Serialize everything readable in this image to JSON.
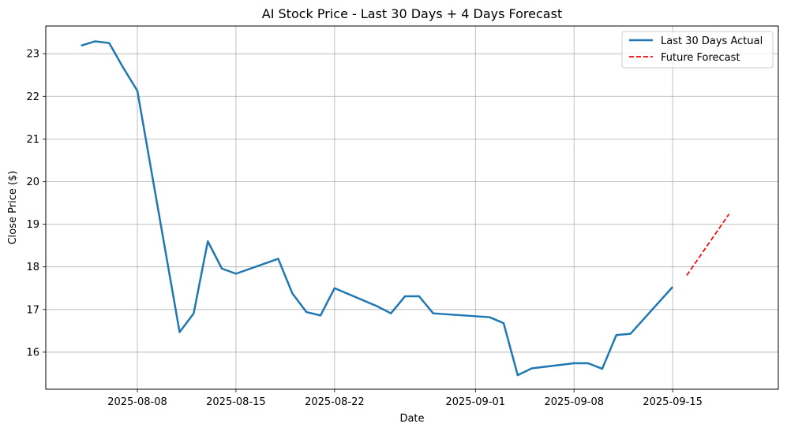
{
  "chart_data": {
    "type": "line",
    "title": "AI Stock Price - Last 30 Days + 4 Days Forecast",
    "xlabel": "Date",
    "ylabel": "Close Price ($)",
    "x_ticks": [
      "2025-08-08",
      "2025-08-15",
      "2025-08-22",
      "2025-09-01",
      "2025-09-08",
      "2025-09-15"
    ],
    "y_ticks": [
      16,
      17,
      18,
      19,
      20,
      21,
      22,
      23
    ],
    "xlim": [
      "2025-08-01T12:00",
      "2025-09-22T12:00"
    ],
    "ylim": [
      15.13,
      23.65
    ],
    "grid": true,
    "legend_position": "top-right",
    "series": [
      {
        "name": "Last 30 Days Actual",
        "color": "#1f77b4",
        "style": "solid",
        "points": [
          {
            "x": "2025-08-04",
            "y": 23.19
          },
          {
            "x": "2025-08-05",
            "y": 23.29
          },
          {
            "x": "2025-08-06",
            "y": 23.25
          },
          {
            "x": "2025-08-07",
            "y": 22.67
          },
          {
            "x": "2025-08-08",
            "y": 22.13
          },
          {
            "x": "2025-08-11",
            "y": 16.47
          },
          {
            "x": "2025-08-12",
            "y": 16.91
          },
          {
            "x": "2025-08-13",
            "y": 18.6
          },
          {
            "x": "2025-08-14",
            "y": 17.96
          },
          {
            "x": "2025-08-15",
            "y": 17.84
          },
          {
            "x": "2025-08-18",
            "y": 18.19
          },
          {
            "x": "2025-08-19",
            "y": 17.38
          },
          {
            "x": "2025-08-20",
            "y": 16.94
          },
          {
            "x": "2025-08-21",
            "y": 16.86
          },
          {
            "x": "2025-08-22",
            "y": 17.5
          },
          {
            "x": "2025-08-25",
            "y": 17.08
          },
          {
            "x": "2025-08-26",
            "y": 16.91
          },
          {
            "x": "2025-08-27",
            "y": 17.31
          },
          {
            "x": "2025-08-28",
            "y": 17.31
          },
          {
            "x": "2025-08-29",
            "y": 16.91
          },
          {
            "x": "2025-09-02",
            "y": 16.82
          },
          {
            "x": "2025-09-03",
            "y": 16.68
          },
          {
            "x": "2025-09-04",
            "y": 15.46
          },
          {
            "x": "2025-09-05",
            "y": 15.62
          },
          {
            "x": "2025-09-08",
            "y": 15.74
          },
          {
            "x": "2025-09-09",
            "y": 15.74
          },
          {
            "x": "2025-09-10",
            "y": 15.61
          },
          {
            "x": "2025-09-11",
            "y": 16.4
          },
          {
            "x": "2025-09-12",
            "y": 16.43
          },
          {
            "x": "2025-09-15",
            "y": 17.53
          }
        ]
      },
      {
        "name": "Future Forecast",
        "color": "#ff0000",
        "style": "dashed",
        "points": [
          {
            "x": "2025-09-16",
            "y": 17.8
          },
          {
            "x": "2025-09-17",
            "y": 18.28
          },
          {
            "x": "2025-09-18",
            "y": 18.76
          },
          {
            "x": "2025-09-19",
            "y": 19.24
          }
        ]
      }
    ]
  }
}
